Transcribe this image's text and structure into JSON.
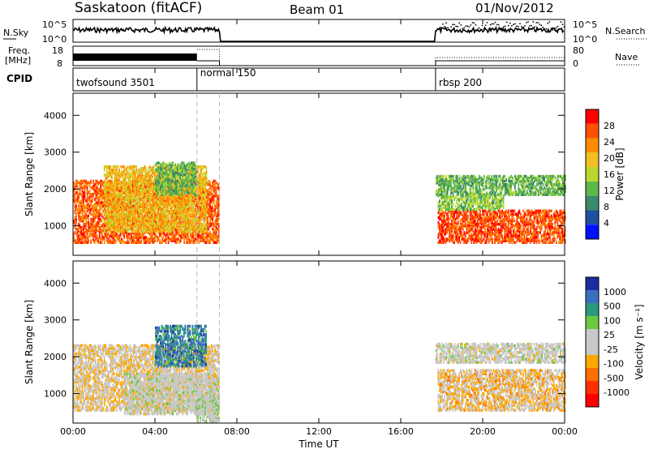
{
  "header": {
    "station": "Saskatoon (fitACF)",
    "beam": "Beam 01",
    "date": "01/Nov/2012"
  },
  "nsky": {
    "label": "N.Sky",
    "tick_top": "10^5",
    "tick_bottom": "10^0",
    "right_tick_top": "10^5",
    "right_tick_bottom": "10^0",
    "search_label": "N.Search"
  },
  "freq": {
    "label_line1": "Freq.",
    "label_line2": "[MHz]",
    "tick_top": "18",
    "tick_bottom": "8",
    "right_tick_top": "80",
    "right_tick_bottom": "0",
    "nave_label": "Nave"
  },
  "cpid": {
    "label": "CPID",
    "segments": [
      {
        "name": "twofsound 3501",
        "start_h": 0
      },
      {
        "name": "normal 150",
        "start_h": 6.05
      },
      {
        "name": "rbsp 200",
        "start_h": 17.7
      }
    ]
  },
  "time_axis": {
    "label": "Time UT",
    "ticks": [
      "00:00",
      "04:00",
      "08:00",
      "12:00",
      "16:00",
      "20:00",
      "00:00"
    ],
    "range_h": [
      0,
      24
    ]
  },
  "colors": {
    "power_bar": [
      "#0010ff",
      "#2050a0",
      "#3a8a6a",
      "#5db84a",
      "#b8d830",
      "#f0c020",
      "#ff8c00",
      "#ff5000",
      "#ff0000"
    ],
    "velocity_bar": [
      "#1a2ea0",
      "#3c6ec0",
      "#2a9a7a",
      "#6cc83c",
      "#c8c8c8",
      "#c8c8c8",
      "#ffa800",
      "#ff7000",
      "#ff3000",
      "#ff0000"
    ]
  },
  "chart_data": [
    {
      "type": "heatmap",
      "name": "power",
      "ylabel": "Slant Range [km]",
      "yticks": [
        "1000",
        "2000",
        "3000",
        "4000"
      ],
      "ylim": [
        200,
        4600
      ],
      "colorbar_label": "Power [dB]",
      "colorbar_ticks": [
        "4",
        "8",
        "12",
        "16",
        "20",
        "24",
        "28"
      ],
      "colorbar_range": [
        0,
        32
      ],
      "blobs": [
        {
          "t0": 0,
          "t1": 7.1,
          "r0": 500,
          "r1": 2200,
          "value": 26
        },
        {
          "t0": 1.5,
          "t1": 6.5,
          "r0": 800,
          "r1": 2600,
          "value": 20
        },
        {
          "t0": 4.0,
          "t1": 6.0,
          "r0": 1800,
          "r1": 2700,
          "value": 12
        },
        {
          "t0": 17.7,
          "t1": 24,
          "r0": 1800,
          "r1": 2300,
          "value": 12
        },
        {
          "t0": 17.8,
          "t1": 24,
          "r0": 500,
          "r1": 1400,
          "value": 27
        },
        {
          "t0": 17.8,
          "t1": 21.0,
          "r0": 1400,
          "r1": 1800,
          "value": 14
        }
      ]
    },
    {
      "type": "heatmap",
      "name": "velocity",
      "ylabel": "Slant Range [km]",
      "yticks": [
        "1000",
        "2000",
        "3000",
        "4000"
      ],
      "ylim": [
        200,
        4600
      ],
      "colorbar_label": "Velocity [m s⁻¹]",
      "colorbar_ticks": [
        "1000",
        "500",
        "100",
        "25",
        "-25",
        "-100",
        "-500",
        "-1000"
      ],
      "colorbar_range": [
        -1000,
        1000
      ],
      "blobs": [
        {
          "t0": 0,
          "t1": 7.1,
          "r0": 500,
          "r1": 2300,
          "value": -150
        },
        {
          "t0": 2.5,
          "t1": 7.1,
          "r0": 400,
          "r1": 1500,
          "value": 0
        },
        {
          "t0": 4.0,
          "t1": 6.5,
          "r0": 1700,
          "r1": 2800,
          "value": 600
        },
        {
          "t0": 6.0,
          "t1": 7.1,
          "r0": 200,
          "r1": 900,
          "value": 100
        },
        {
          "t0": 17.7,
          "t1": 24,
          "r0": 1800,
          "r1": 2300,
          "value": 0
        },
        {
          "t0": 17.8,
          "t1": 24,
          "r0": 500,
          "r1": 1600,
          "value": -200
        }
      ]
    }
  ]
}
